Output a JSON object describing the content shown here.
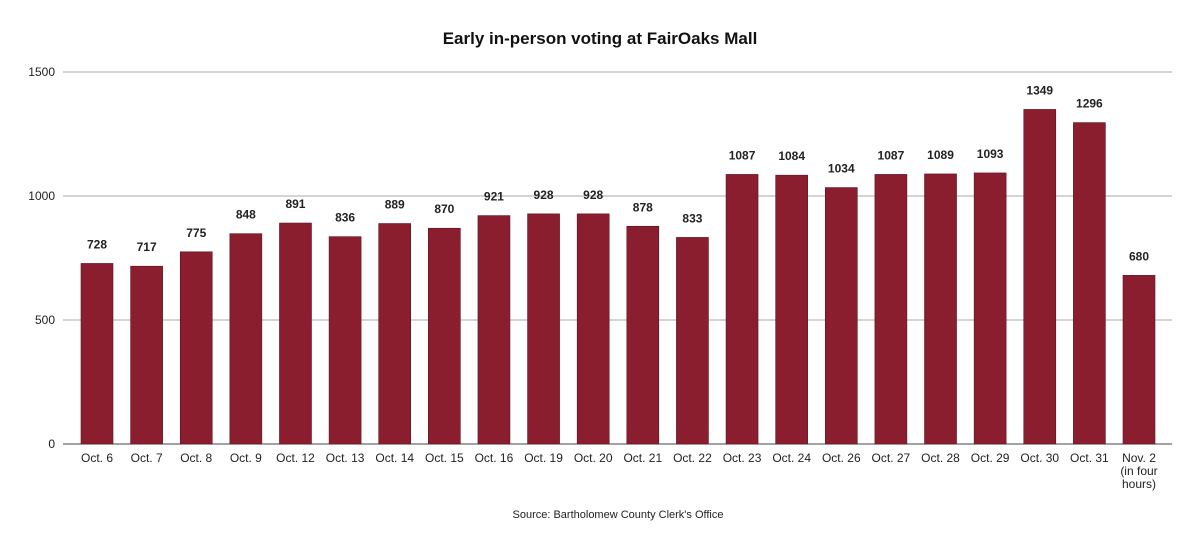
{
  "chart_data": {
    "type": "bar",
    "title": "Early in-person voting at FairOaks Mall",
    "xlabel": "",
    "ylabel": "",
    "ylim": [
      0,
      1500
    ],
    "yticks": [
      0,
      500,
      1000,
      1500
    ],
    "grid": true,
    "bar_color": "#8b1e2e",
    "categories": [
      "Oct. 6",
      "Oct. 7",
      "Oct. 8",
      "Oct. 9",
      "Oct. 12",
      "Oct. 13",
      "Oct. 14",
      "Oct. 15",
      "Oct. 16",
      "Oct. 19",
      "Oct. 20",
      "Oct. 21",
      "Oct. 22",
      "Oct. 23",
      "Oct. 24",
      "Oct. 26",
      "Oct. 27",
      "Oct. 28",
      "Oct. 29",
      "Oct. 30",
      "Oct. 31",
      "Nov. 2 (in four hours)"
    ],
    "category_lines": [
      [
        "Oct. 6"
      ],
      [
        "Oct. 7"
      ],
      [
        "Oct. 8"
      ],
      [
        "Oct. 9"
      ],
      [
        "Oct. 12"
      ],
      [
        "Oct. 13"
      ],
      [
        "Oct. 14"
      ],
      [
        "Oct. 15"
      ],
      [
        "Oct. 16"
      ],
      [
        "Oct. 19"
      ],
      [
        "Oct. 20"
      ],
      [
        "Oct. 21"
      ],
      [
        "Oct. 22"
      ],
      [
        "Oct. 23"
      ],
      [
        "Oct. 24"
      ],
      [
        "Oct. 26"
      ],
      [
        "Oct. 27"
      ],
      [
        "Oct. 28"
      ],
      [
        "Oct. 29"
      ],
      [
        "Oct. 30"
      ],
      [
        "Oct. 31"
      ],
      [
        "Nov. 2",
        "(in four",
        "hours)"
      ]
    ],
    "values": [
      728,
      717,
      775,
      848,
      891,
      836,
      889,
      870,
      921,
      928,
      928,
      878,
      833,
      1087,
      1084,
      1034,
      1087,
      1089,
      1093,
      1349,
      1296,
      680
    ],
    "source": "Source: Bartholomew County Clerk's Office"
  }
}
